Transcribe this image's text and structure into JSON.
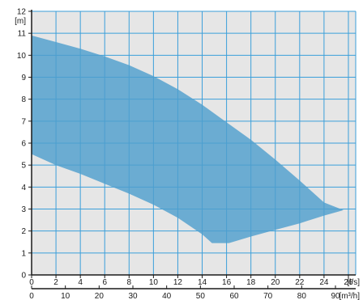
{
  "chart_data": {
    "type": "area",
    "title": "",
    "y_axis": {
      "unit_label": "[m]",
      "min": 0,
      "max": 12,
      "ticks": [
        0,
        1,
        2,
        3,
        4,
        5,
        6,
        7,
        8,
        9,
        10,
        11,
        12
      ]
    },
    "x_axis_primary": {
      "unit_label": "[l/s]",
      "min": 0,
      "max": 26.6,
      "ticks": [
        0,
        2,
        4,
        6,
        8,
        10,
        12,
        14,
        16,
        18,
        20,
        22,
        24,
        26
      ]
    },
    "x_axis_secondary": {
      "unit_label": "[m³/h]",
      "min": 0,
      "max": 96,
      "ticks": [
        0,
        10,
        20,
        30,
        40,
        50,
        60,
        70,
        80,
        90
      ]
    },
    "grid": true,
    "series": [
      {
        "upper_curve": [
          {
            "x": 0,
            "y": 10.9
          },
          {
            "x": 2,
            "y": 10.6
          },
          {
            "x": 4,
            "y": 10.3
          },
          {
            "x": 6,
            "y": 9.95
          },
          {
            "x": 8,
            "y": 9.55
          },
          {
            "x": 10,
            "y": 9.05
          },
          {
            "x": 12,
            "y": 8.45
          },
          {
            "x": 14,
            "y": 7.75
          },
          {
            "x": 16,
            "y": 6.95
          },
          {
            "x": 18,
            "y": 6.15
          },
          {
            "x": 20,
            "y": 5.25
          },
          {
            "x": 22,
            "y": 4.3
          },
          {
            "x": 24,
            "y": 3.3
          },
          {
            "x": 25.6,
            "y": 2.95
          }
        ],
        "lower_curve": [
          {
            "x": 0,
            "y": 5.5
          },
          {
            "x": 2,
            "y": 5.0
          },
          {
            "x": 4,
            "y": 4.6
          },
          {
            "x": 6,
            "y": 4.15
          },
          {
            "x": 8,
            "y": 3.7
          },
          {
            "x": 10,
            "y": 3.2
          },
          {
            "x": 12,
            "y": 2.6
          },
          {
            "x": 14,
            "y": 1.85
          },
          {
            "x": 14.8,
            "y": 1.45
          },
          {
            "x": 16.2,
            "y": 1.45
          },
          {
            "x": 18,
            "y": 1.75
          },
          {
            "x": 20,
            "y": 2.05
          },
          {
            "x": 22,
            "y": 2.35
          },
          {
            "x": 24,
            "y": 2.7
          },
          {
            "x": 25.6,
            "y": 2.95
          }
        ]
      }
    ],
    "colors": {
      "plot_background": "#e6e6e6",
      "gridline": "#3b9fda",
      "area_fill": "#4f9fcd",
      "axis": "#1a1a1a"
    }
  }
}
